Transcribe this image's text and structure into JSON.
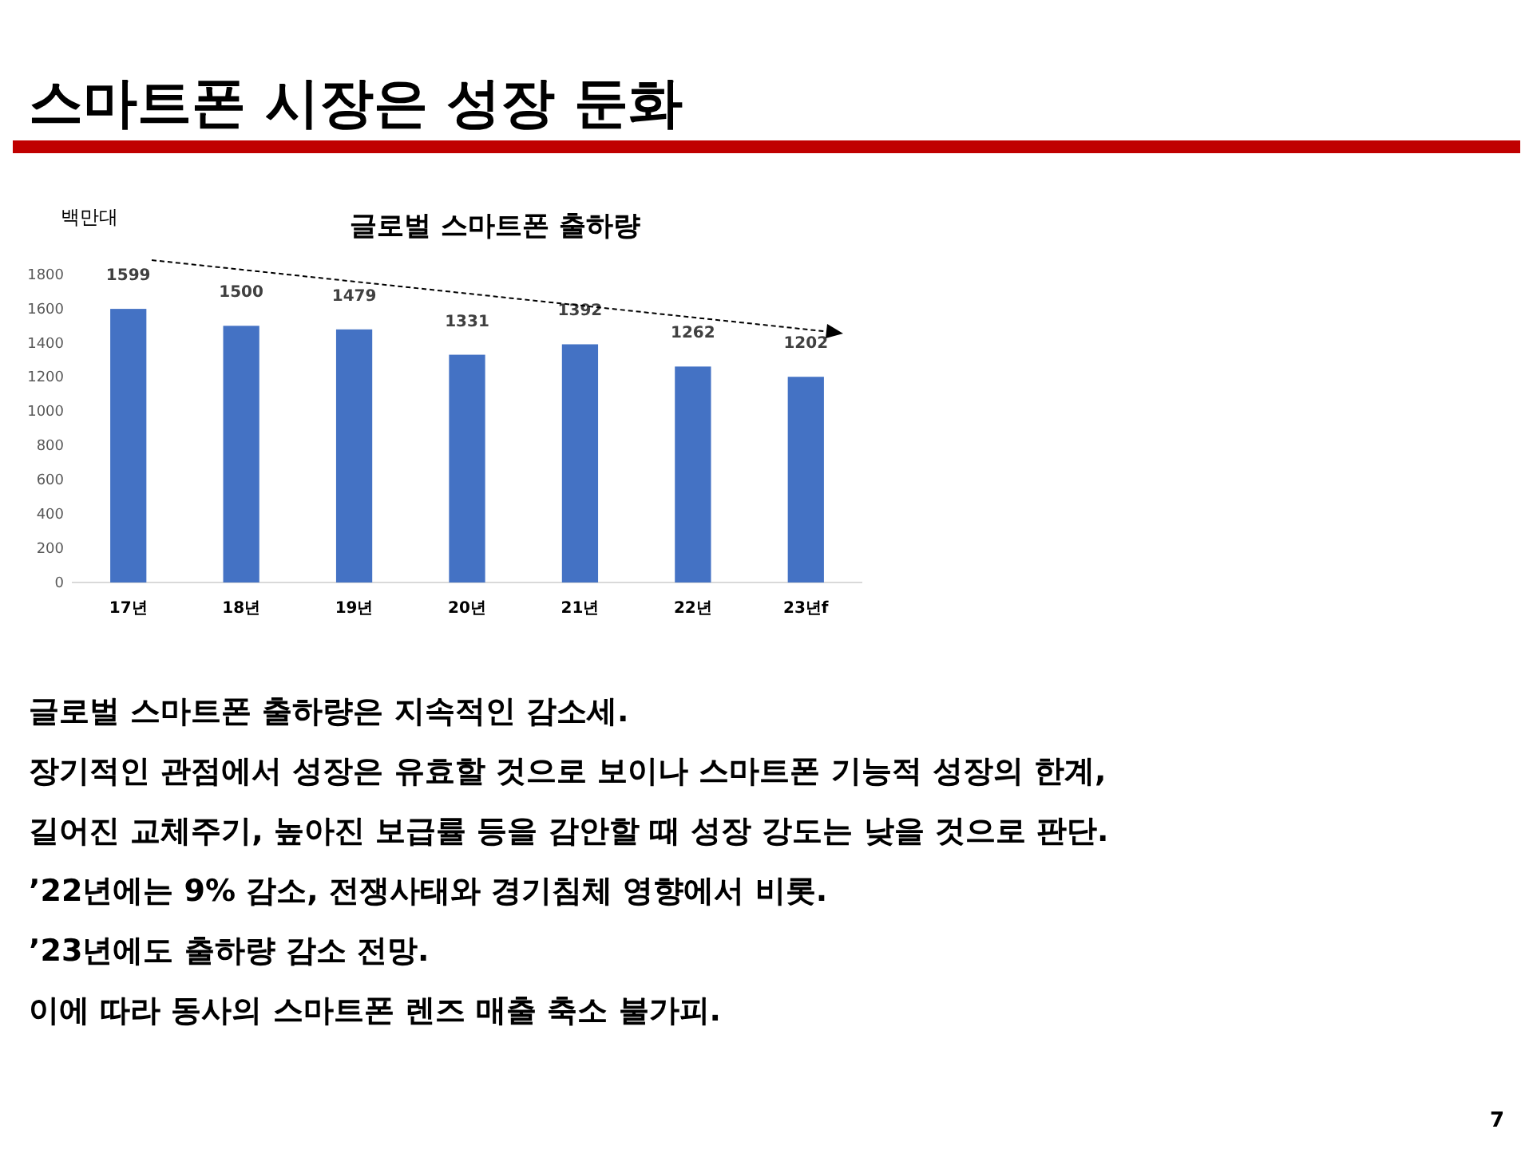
{
  "chart_data": {
    "type": "bar",
    "title": "스마트폰 시장은 성장 둔화",
    "subtitle": "글로벌 스마트폰 출하량",
    "ylabel": "백만대",
    "categories": [
      "17년",
      "18년",
      "19년",
      "20년",
      "21년",
      "22년",
      "23년f"
    ],
    "values": [
      1599,
      1500,
      1479,
      1331,
      1392,
      1262,
      1202
    ],
    "color": "#4472c4",
    "ylim": [
      0,
      1800
    ],
    "yticks": [
      0,
      200,
      400,
      600,
      800,
      1000,
      1200,
      1400,
      1600,
      1800
    ],
    "grid": false,
    "data_labels": true,
    "annotations": [
      "글로벌 스마트폰 출하량은 지속적인 감소세.",
      "장기적인 관점에서 성장은 유효할 것으로 보이나 스마트폰 기능적 성장의 한계,",
      "길어진 교체주기, 높아진 보급률 등을 감안할 때 성장 강도는 낮을 것으로 판단.",
      "’22년에는 9% 감소, 전쟁사태와 경기침체 영향에서 비롯.",
      "’23년에도 출하량 감소 전망.",
      "이에 따라 동사의 스마트폰 렌즈 매출 축소 불가피.",
      "7"
    ]
  }
}
